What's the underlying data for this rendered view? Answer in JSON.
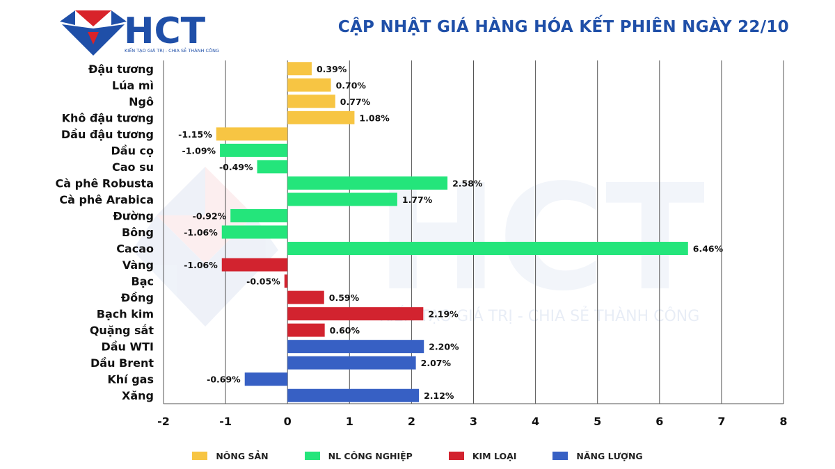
{
  "header": {
    "logo_text": "HCT",
    "logo_tagline": "KIẾN TẠO GIÁ TRỊ - CHIA SẺ THÀNH CÔNG",
    "title": "CẬP NHẬT GIÁ HÀNG HÓA KẾT PHIÊN NGÀY 22/10"
  },
  "watermark": {
    "text": "HCT",
    "tagline": "KIẾN TẠO GIÁ TRỊ - CHIA SẺ THÀNH CÔNG"
  },
  "colors": {
    "brand_blue": "#1f4fa8",
    "brand_red": "#d8232a",
    "nong_san": "#f7c543",
    "nl_cong_nghiep": "#24e57b",
    "kim_loai": "#d2232f",
    "nang_luong": "#3760c4"
  },
  "chart_data": {
    "type": "bar",
    "orientation": "horizontal",
    "title": "CẬP NHẬT GIÁ HÀNG HÓA KẾT PHIÊN NGÀY 22/10",
    "xlabel": "",
    "ylabel": "",
    "xlim": [
      -2,
      8
    ],
    "xticks": [
      -2,
      -1,
      0,
      1,
      2,
      3,
      4,
      5,
      6,
      7,
      8
    ],
    "grid": "vertical",
    "legend_position": "bottom",
    "groups": [
      {
        "name": "NÔNG SẢN",
        "color": "#f7c543"
      },
      {
        "name": "NL CÔNG NGHIỆP",
        "color": "#24e57b"
      },
      {
        "name": "KIM LOẠI",
        "color": "#d2232f"
      },
      {
        "name": "NĂNG LƯỢNG",
        "color": "#3760c4"
      }
    ],
    "bars": [
      {
        "category": "Đậu tương",
        "value": 0.39,
        "label": "0.39%",
        "group": 0
      },
      {
        "category": "Lúa mì",
        "value": 0.7,
        "label": "0.70%",
        "group": 0
      },
      {
        "category": "Ngô",
        "value": 0.77,
        "label": "0.77%",
        "group": 0
      },
      {
        "category": "Khô đậu tương",
        "value": 1.08,
        "label": "1.08%",
        "group": 0
      },
      {
        "category": "Dầu đậu tương",
        "value": -1.15,
        "label": "-1.15%",
        "group": 0
      },
      {
        "category": "Dầu cọ",
        "value": -1.09,
        "label": "-1.09%",
        "group": 1
      },
      {
        "category": "Cao su",
        "value": -0.49,
        "label": "-0.49%",
        "group": 1
      },
      {
        "category": "Cà phê Robusta",
        "value": 2.58,
        "label": "2.58%",
        "group": 1
      },
      {
        "category": "Cà phê Arabica",
        "value": 1.77,
        "label": "1.77%",
        "group": 1
      },
      {
        "category": "Đường",
        "value": -0.92,
        "label": "-0.92%",
        "group": 1
      },
      {
        "category": "Bông",
        "value": -1.06,
        "label": "-1.06%",
        "group": 1
      },
      {
        "category": "Cacao",
        "value": 6.46,
        "label": "6.46%",
        "group": 1
      },
      {
        "category": "Vàng",
        "value": -1.06,
        "label": "-1.06%",
        "group": 2
      },
      {
        "category": "Bạc",
        "value": -0.05,
        "label": "-0.05%",
        "group": 2
      },
      {
        "category": "Đồng",
        "value": 0.59,
        "label": "0.59%",
        "group": 2
      },
      {
        "category": "Bạch kim",
        "value": 2.19,
        "label": "2.19%",
        "group": 2
      },
      {
        "category": "Quặng sắt",
        "value": 0.6,
        "label": "0.60%",
        "group": 2
      },
      {
        "category": "Dầu WTI",
        "value": 2.2,
        "label": "2.20%",
        "group": 3
      },
      {
        "category": "Dầu Brent",
        "value": 2.07,
        "label": "2.07%",
        "group": 3
      },
      {
        "category": "Khí gas",
        "value": -0.69,
        "label": "-0.69%",
        "group": 3
      },
      {
        "category": "Xăng",
        "value": 2.12,
        "label": "2.12%",
        "group": 3
      }
    ]
  }
}
